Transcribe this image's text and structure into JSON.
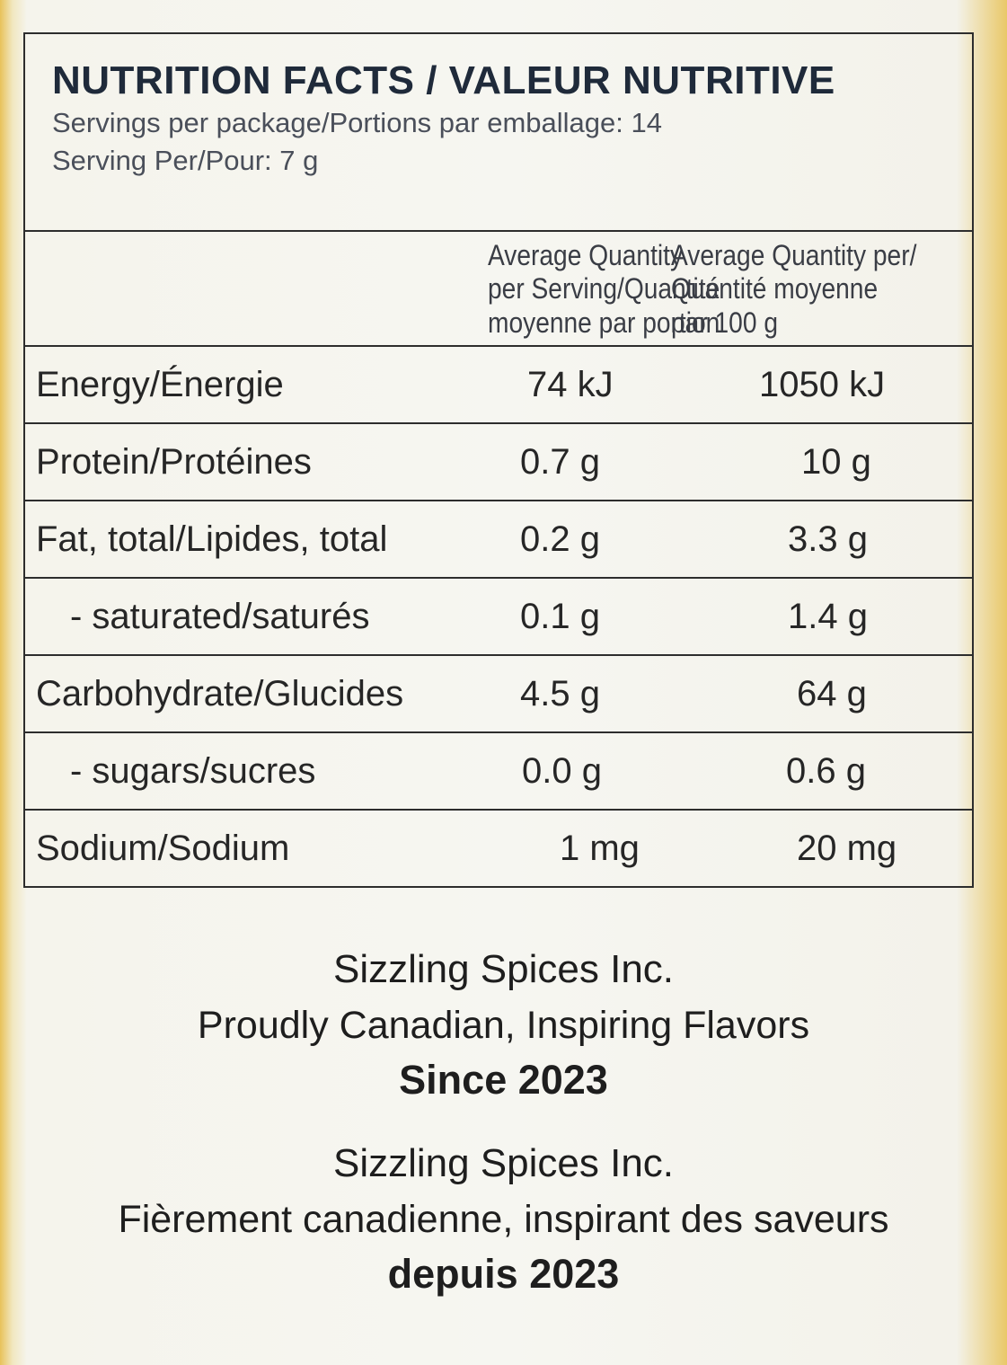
{
  "label": {
    "title": "NUTRITION FACTS / VALEUR NUTRITIVE",
    "servings_per_package": "Servings per package/Portions par emballage: 14",
    "serving_size": "Serving Per/Pour: 7 g",
    "column_headers": {
      "per_serving": [
        "Average Quantity",
        "per Serving/Quantité",
        "moyenne par portion"
      ],
      "per_100g": [
        "Average Quantity per/",
        "Quantité moyenne",
        "par 100 g"
      ]
    },
    "rows": [
      {
        "name": "Energy/Énergie",
        "per_serving": "74 kJ",
        "per_100g": "1050 kJ"
      },
      {
        "name": "Protein/Protéines",
        "per_serving": "0.7 g",
        "per_100g": "10 g"
      },
      {
        "name": "Fat, total/Lipides, total",
        "per_serving": "0.2 g",
        "per_100g": "3.3 g"
      },
      {
        "name": "- saturated/saturés",
        "per_serving": "0.1 g",
        "per_100g": "1.4 g"
      },
      {
        "name": "Carbohydrate/Glucides",
        "per_serving": "4.5 g",
        "per_100g": "64 g"
      },
      {
        "name": "- sugars/sucres",
        "per_serving": "0.0 g",
        "per_100g": "0.6 g"
      },
      {
        "name": "Sodium/Sodium",
        "per_serving": "1 mg",
        "per_100g": "20 mg"
      }
    ]
  },
  "footer_en": {
    "company": "Sizzling Spices Inc.",
    "tagline": "Proudly Canadian, Inspiring Flavors",
    "since": "Since 2023"
  },
  "footer_fr": {
    "company": "Sizzling Spices Inc.",
    "tagline": "Fièrement canadienne, inspirant des saveurs",
    "since": "depuis 2023"
  },
  "colors": {
    "packaging_edge": "#e8c25a",
    "label_background": "#f6f6f1",
    "border": "#2d2d2d",
    "title_text": "#1f2a3a"
  }
}
